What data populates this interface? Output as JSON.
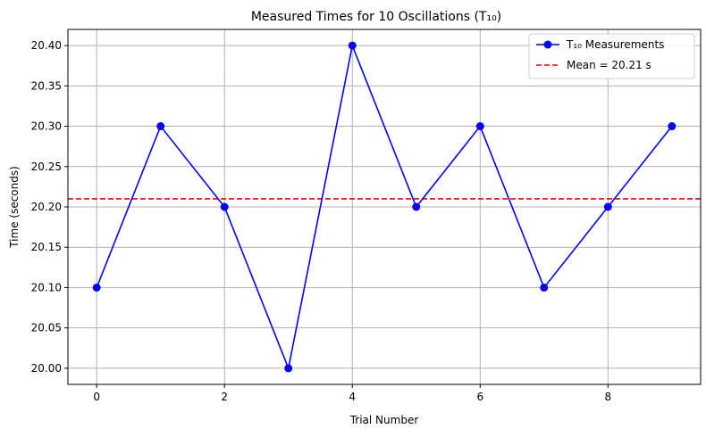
{
  "chart_data": {
    "type": "line",
    "title": "Measured Times for 10 Oscillations (T₁₀)",
    "xlabel": "Trial Number",
    "ylabel": "Time (seconds)",
    "xlim": [
      -0.45,
      9.45
    ],
    "ylim": [
      19.98,
      20.42
    ],
    "x_ticks": [
      0,
      2,
      4,
      6,
      8
    ],
    "y_ticks": [
      20.0,
      20.05,
      20.1,
      20.15,
      20.2,
      20.25,
      20.3,
      20.35,
      20.4
    ],
    "grid": true,
    "legend_position": "top-right",
    "series": [
      {
        "name": "T₁₀ Measurements",
        "color": "#0000ff",
        "marker": "circle",
        "x": [
          0,
          1,
          2,
          3,
          4,
          5,
          6,
          7,
          8,
          9
        ],
        "values": [
          20.1,
          20.3,
          20.2,
          20.0,
          20.4,
          20.2,
          20.3,
          20.1,
          20.2,
          20.3
        ]
      }
    ],
    "reference_lines": [
      {
        "name": "Mean = 20.21 s",
        "value": 20.21,
        "color": "#ff0000",
        "style": "dashed"
      }
    ]
  }
}
